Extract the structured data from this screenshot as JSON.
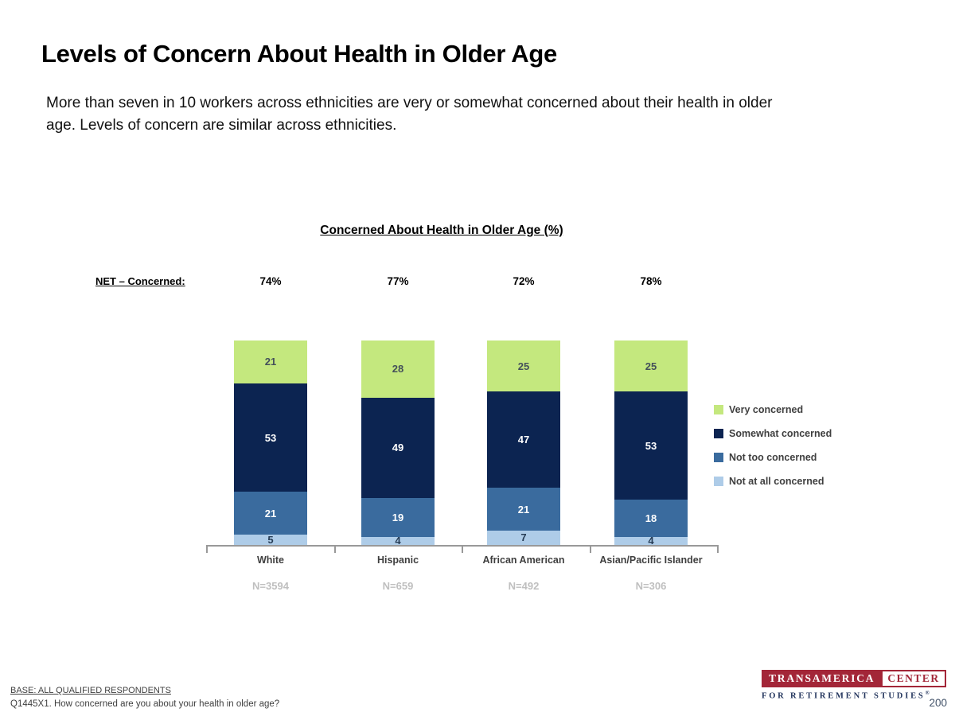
{
  "slide": {
    "title": "Levels of Concern About Health in Older Age",
    "subtitle_line1": "More than seven in 10 workers across ethnicities are very or somewhat concerned about their health in older",
    "subtitle_line2": "age. Levels of concern are similar across ethnicities.",
    "page_number": "200"
  },
  "chart_data": {
    "type": "bar",
    "stacked": true,
    "title": "Concerned About Health in Older Age (%)",
    "net_label": "NET – Concerned:",
    "categories": [
      "White",
      "Hispanic",
      "African American",
      "Asian/Pacific Islander"
    ],
    "net_values": [
      "74%",
      "77%",
      "72%",
      "78%"
    ],
    "n_values": [
      "N=3594",
      "N=659",
      "N=492",
      "N=306"
    ],
    "series": [
      {
        "name": "Very concerned",
        "color": "#C4E87E",
        "text_color": "#44505A",
        "values": [
          21,
          28,
          25,
          25
        ]
      },
      {
        "name": "Somewhat concerned",
        "color": "#0C2451",
        "text_color": "#FFFFFF",
        "values": [
          53,
          49,
          47,
          53
        ]
      },
      {
        "name": "Not too concerned",
        "color": "#3A6B9E",
        "text_color": "#FFFFFF",
        "values": [
          21,
          19,
          21,
          18
        ]
      },
      {
        "name": "Not at all concerned",
        "color": "#AECCE8",
        "text_color": "#263C55",
        "values": [
          5,
          4,
          7,
          4
        ]
      }
    ],
    "ylim": [
      0,
      100
    ],
    "legend_position": "right",
    "axis_color": "#999999"
  },
  "footer": {
    "base_text": "BASE:  ALL QUALIFIED RESPONDENTS",
    "question_text": "Q1445X1. How concerned are you about your health in older age?",
    "logo_brand": "TRANSAMERICA",
    "logo_center": "CENTER",
    "logo_tagline": "FOR RETIREMENT STUDIES",
    "logo_reg": "®"
  }
}
